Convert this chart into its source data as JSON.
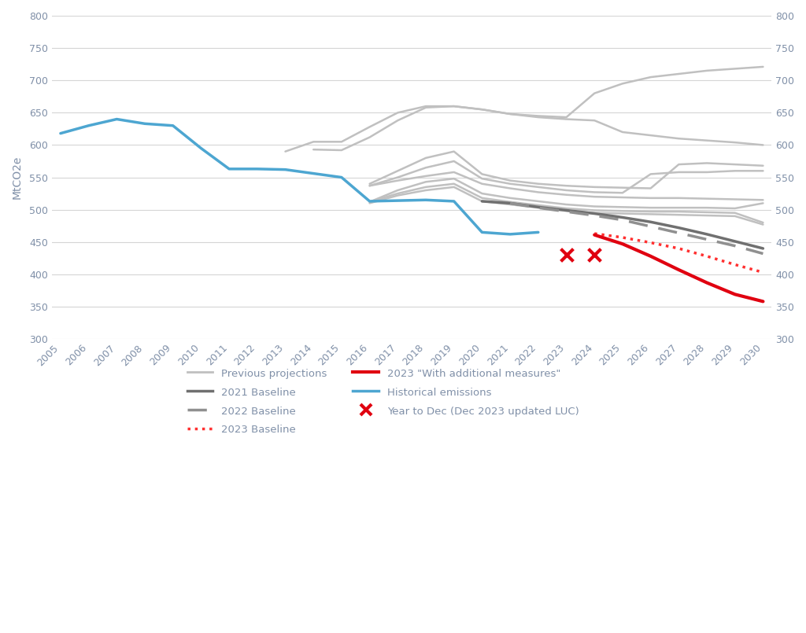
{
  "historical": {
    "years": [
      2005,
      2006,
      2007,
      2008,
      2009,
      2010,
      2011,
      2012,
      2013,
      2014,
      2015,
      2016,
      2017,
      2018,
      2019,
      2020,
      2021,
      2022
    ],
    "values": [
      618,
      630,
      640,
      633,
      630,
      595,
      563,
      563,
      562,
      556,
      550,
      513,
      514,
      515,
      513,
      465,
      462,
      465
    ]
  },
  "previous_projections": [
    {
      "years": [
        2013,
        2014,
        2015,
        2016,
        2017,
        2018,
        2019,
        2020,
        2021,
        2022,
        2023,
        2024,
        2025,
        2026,
        2027,
        2028,
        2029,
        2030
      ],
      "values": [
        590,
        605,
        605,
        628,
        650,
        660,
        660,
        655,
        648,
        645,
        643,
        680,
        695,
        705,
        710,
        715,
        718,
        721
      ]
    },
    {
      "years": [
        2014,
        2015,
        2016,
        2017,
        2018,
        2019,
        2020,
        2021,
        2022,
        2023,
        2024,
        2025,
        2026,
        2027,
        2028,
        2029,
        2030
      ],
      "values": [
        593,
        592,
        612,
        638,
        658,
        660,
        655,
        648,
        643,
        640,
        638,
        620,
        615,
        610,
        607,
        604,
        600
      ]
    },
    {
      "years": [
        2016,
        2017,
        2018,
        2019,
        2020,
        2021,
        2022,
        2023,
        2024,
        2025,
        2026,
        2027,
        2028,
        2029,
        2030
      ],
      "values": [
        540,
        560,
        580,
        590,
        555,
        545,
        540,
        537,
        535,
        534,
        533,
        570,
        572,
        570,
        568
      ]
    },
    {
      "years": [
        2016,
        2017,
        2018,
        2019,
        2020,
        2021,
        2022,
        2023,
        2024,
        2025,
        2026,
        2027,
        2028,
        2029,
        2030
      ],
      "values": [
        537,
        550,
        565,
        575,
        548,
        540,
        535,
        530,
        527,
        526,
        555,
        558,
        558,
        560,
        560
      ]
    },
    {
      "years": [
        2016,
        2017,
        2018,
        2019,
        2020,
        2021,
        2022,
        2023,
        2024,
        2025,
        2026,
        2027,
        2028,
        2029,
        2030
      ],
      "values": [
        537,
        545,
        552,
        558,
        540,
        533,
        527,
        523,
        520,
        519,
        518,
        518,
        517,
        516,
        515
      ]
    },
    {
      "years": [
        2016,
        2017,
        2018,
        2019,
        2020,
        2021,
        2022,
        2023,
        2024,
        2025,
        2026,
        2027,
        2028,
        2029,
        2030
      ],
      "values": [
        512,
        530,
        543,
        548,
        525,
        518,
        513,
        508,
        505,
        504,
        503,
        503,
        503,
        502,
        510
      ]
    },
    {
      "years": [
        2016,
        2017,
        2018,
        2019,
        2020,
        2021,
        2022,
        2023,
        2024,
        2025,
        2026,
        2027,
        2028,
        2029,
        2030
      ],
      "values": [
        512,
        525,
        535,
        540,
        518,
        512,
        507,
        502,
        499,
        498,
        497,
        497,
        496,
        495,
        480
      ]
    },
    {
      "years": [
        2016,
        2017,
        2018,
        2019,
        2020,
        2021,
        2022,
        2023,
        2024,
        2025,
        2026,
        2027,
        2028,
        2029,
        2030
      ],
      "values": [
        510,
        522,
        530,
        535,
        513,
        508,
        503,
        498,
        495,
        494,
        493,
        492,
        491,
        490,
        477
      ]
    }
  ],
  "baseline_2021": {
    "years": [
      2020,
      2021,
      2022,
      2023,
      2024,
      2025,
      2026,
      2027,
      2028,
      2029,
      2030
    ],
    "values": [
      513,
      510,
      504,
      499,
      494,
      488,
      481,
      472,
      462,
      451,
      440
    ]
  },
  "baseline_2022": {
    "years": [
      2021,
      2022,
      2023,
      2024,
      2025,
      2026,
      2027,
      2028,
      2029,
      2030
    ],
    "values": [
      510,
      503,
      497,
      491,
      484,
      474,
      464,
      454,
      444,
      432
    ]
  },
  "baseline_2023": {
    "years": [
      2024,
      2025,
      2026,
      2027,
      2028,
      2029,
      2030
    ],
    "values": [
      463,
      457,
      449,
      440,
      428,
      415,
      403
    ]
  },
  "wam_2023": {
    "years": [
      2024,
      2025,
      2026,
      2027,
      2028,
      2029,
      2030
    ],
    "values": [
      461,
      447,
      428,
      407,
      387,
      369,
      358
    ]
  },
  "x_markers": {
    "years": [
      2023,
      2024
    ],
    "values": [
      430,
      430
    ]
  },
  "colors": {
    "historical": "#4da6d1",
    "previous_projections": "#c0c0c0",
    "baseline_2021": "#707070",
    "baseline_2022": "#909090",
    "baseline_2023": "#ff3030",
    "wam_2023": "#e00010",
    "x_marker": "#e00010"
  },
  "ylim": [
    300,
    800
  ],
  "xlim_min": 2005,
  "xlim_max": 2030,
  "ylabel": "MtCO2e",
  "yticks": [
    300,
    350,
    400,
    450,
    500,
    550,
    600,
    650,
    700,
    750,
    800
  ],
  "xticks": [
    2005,
    2006,
    2007,
    2008,
    2009,
    2010,
    2011,
    2012,
    2013,
    2014,
    2015,
    2016,
    2017,
    2018,
    2019,
    2020,
    2021,
    2022,
    2023,
    2024,
    2025,
    2026,
    2027,
    2028,
    2029,
    2030
  ],
  "background_color": "#ffffff",
  "grid_color": "#d5d5d5",
  "tick_color": "#8090a8",
  "legend_items": [
    {
      "label": "Previous projections",
      "type": "line",
      "color": "#c0c0c0",
      "ls": "solid",
      "lw": 2.0
    },
    {
      "label": "2021 Baseline",
      "type": "line",
      "color": "#707070",
      "ls": "solid",
      "lw": 2.5
    },
    {
      "label": "2022 Baseline",
      "type": "line",
      "color": "#909090",
      "ls": "dashed",
      "lw": 2.5
    },
    {
      "label": "2023 Baseline",
      "type": "line",
      "color": "#ff3030",
      "ls": "dotted",
      "lw": 2.5
    },
    {
      "label": "2023 \"With additional measures\"",
      "type": "line",
      "color": "#e00010",
      "ls": "solid",
      "lw": 3.0
    },
    {
      "label": "Historical emissions",
      "type": "line",
      "color": "#4da6d1",
      "ls": "solid",
      "lw": 2.5
    },
    {
      "label": "Year to Dec (Dec 2023 updated LUC)",
      "type": "marker",
      "color": "#e00010"
    }
  ]
}
